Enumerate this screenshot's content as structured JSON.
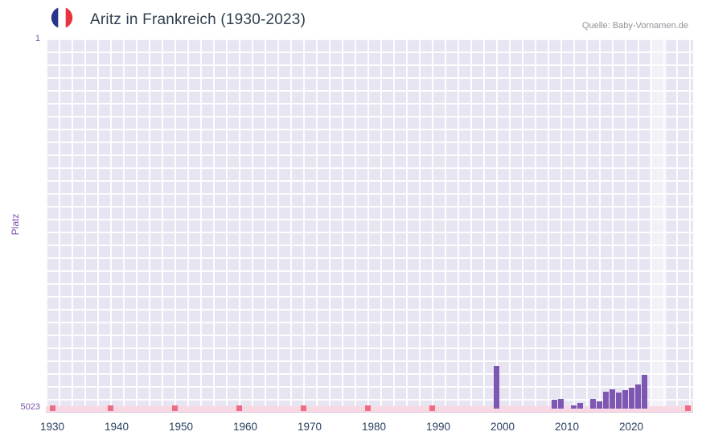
{
  "header": {
    "title": "Aritz in Frankreich (1930-2023)",
    "source": "Quelle: Baby-Vornamen.de"
  },
  "flag": {
    "name": "france-flag-icon",
    "colors": [
      "#26348b",
      "#ffffff",
      "#e8343f"
    ]
  },
  "axes": {
    "ylabel": "Platz",
    "y_top": "1",
    "y_bottom": "5023"
  },
  "chart_data": {
    "type": "bar",
    "title": "Aritz in Frankreich (1930-2023)",
    "xlabel": "",
    "ylabel": "Platz",
    "ylim": [
      1,
      5023
    ],
    "y_inverted": true,
    "grid": "on",
    "plot_bg": "#e8e5f2",
    "bar_color": "#7e57b2",
    "x_tick_labels": [
      "1930",
      "1940",
      "1950",
      "1960",
      "1970",
      "1980",
      "1990",
      "2000",
      "2010",
      "2020"
    ],
    "x_range": [
      1929,
      2030
    ],
    "series": [
      {
        "name": "Platz",
        "points": [
          {
            "year": 1999,
            "rank": 4440
          },
          {
            "year": 2008,
            "rank": 4900
          },
          {
            "year": 2009,
            "rank": 4895
          },
          {
            "year": 2011,
            "rank": 4975
          },
          {
            "year": 2012,
            "rank": 4945
          },
          {
            "year": 2014,
            "rank": 4890
          },
          {
            "year": 2015,
            "rank": 4920
          },
          {
            "year": 2016,
            "rank": 4790
          },
          {
            "year": 2017,
            "rank": 4760
          },
          {
            "year": 2018,
            "rank": 4800
          },
          {
            "year": 2019,
            "rank": 4770
          },
          {
            "year": 2020,
            "rank": 4740
          },
          {
            "year": 2021,
            "rank": 4700
          },
          {
            "year": 2022,
            "rank": 4560
          }
        ]
      }
    ],
    "unranked_marker_years": [
      1930,
      1939,
      1949,
      1959,
      1969,
      1979,
      1989
    ],
    "right_edge_marker": true,
    "marker_color": "#ec6d84",
    "baseline_strip_color": "#f8d8e3",
    "highlight_band": {
      "from_year": 2023,
      "to_year": 2025.6
    }
  }
}
